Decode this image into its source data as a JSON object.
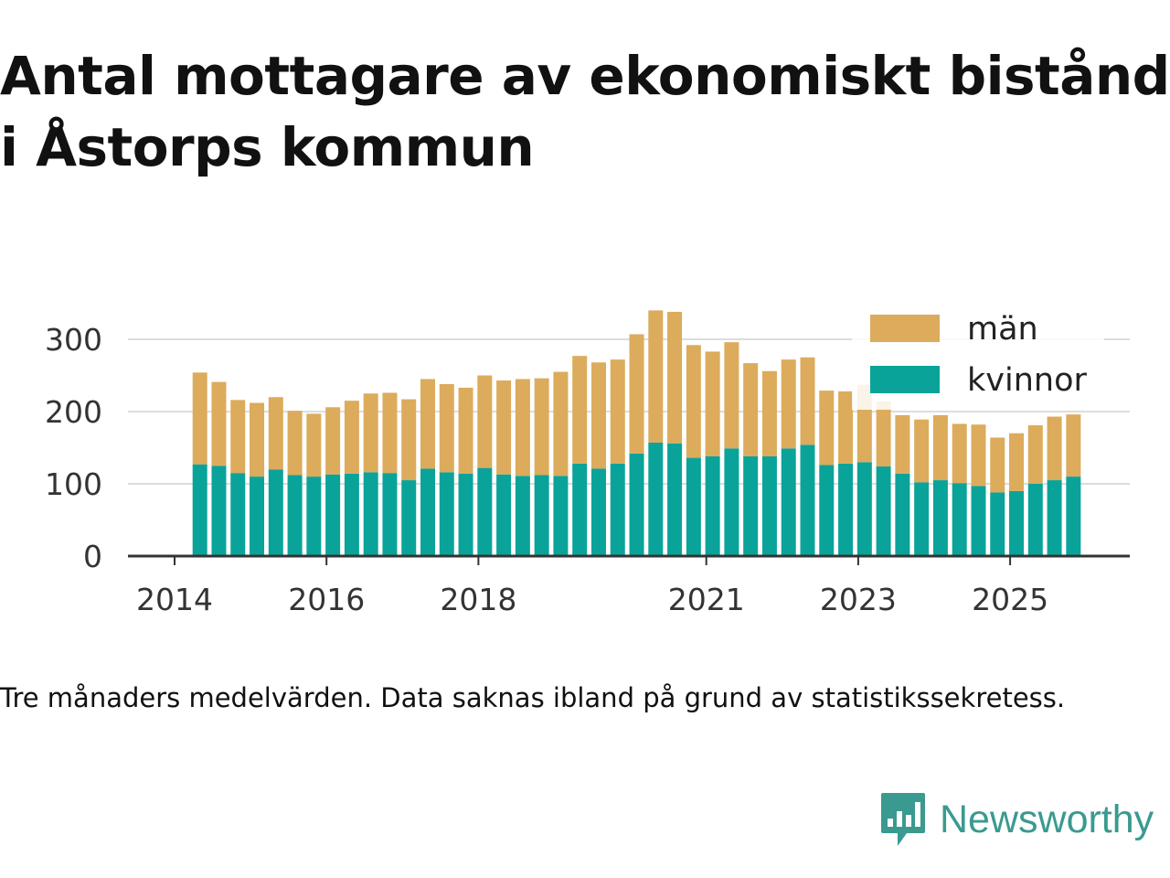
{
  "title_line1": "Antal mottagare av ekonomiskt bistånd",
  "title_line2": "i Åstorps kommun",
  "caption": "Tre månaders medelvärden. Data saknas ibland på grund av statistikssekretess.",
  "brand": {
    "name": "Newsworthy",
    "icon": "newsworthy-logo-icon",
    "color": "#3a9a90"
  },
  "chart_data": {
    "type": "bar",
    "stacked": true,
    "x_axis_ticks": [
      "2014",
      "2016",
      "2018",
      "2021",
      "2023",
      "2025"
    ],
    "y_axis_ticks": [
      "0",
      "100",
      "200",
      "300"
    ],
    "ylim": [
      0,
      350
    ],
    "grid": true,
    "legend_position": "top-right",
    "series": [
      {
        "name": "kvinnor",
        "color": "#0aa39a",
        "points": [
          {
            "x": "2014-05",
            "y": 127
          },
          {
            "x": "2014-08",
            "y": 125
          },
          {
            "x": "2014-11",
            "y": 115
          },
          {
            "x": "2015-02",
            "y": 110
          },
          {
            "x": "2015-05",
            "y": 120
          },
          {
            "x": "2015-08",
            "y": 112
          },
          {
            "x": "2015-11",
            "y": 110
          },
          {
            "x": "2016-02",
            "y": 113
          },
          {
            "x": "2016-05",
            "y": 114
          },
          {
            "x": "2016-08",
            "y": 116
          },
          {
            "x": "2016-11",
            "y": 115
          },
          {
            "x": "2017-02",
            "y": 105
          },
          {
            "x": "2017-05",
            "y": 121
          },
          {
            "x": "2017-08",
            "y": 116
          },
          {
            "x": "2017-11",
            "y": 114
          },
          {
            "x": "2018-02",
            "y": 122
          },
          {
            "x": "2018-05",
            "y": 113
          },
          {
            "x": "2018-08",
            "y": 111
          },
          {
            "x": "2018-11",
            "y": 112
          },
          {
            "x": "2019-02",
            "y": 111
          },
          {
            "x": "2019-05",
            "y": 128
          },
          {
            "x": "2019-08",
            "y": 121
          },
          {
            "x": "2019-11",
            "y": 128
          },
          {
            "x": "2020-02",
            "y": 142
          },
          {
            "x": "2020-05",
            "y": 157
          },
          {
            "x": "2020-08",
            "y": 156
          },
          {
            "x": "2020-11",
            "y": 136
          },
          {
            "x": "2021-02",
            "y": 138
          },
          {
            "x": "2021-05",
            "y": 149
          },
          {
            "x": "2021-08",
            "y": 138
          },
          {
            "x": "2021-11",
            "y": 138
          },
          {
            "x": "2022-02",
            "y": 149
          },
          {
            "x": "2022-05",
            "y": 154
          },
          {
            "x": "2022-08",
            "y": 126
          },
          {
            "x": "2022-11",
            "y": 128
          },
          {
            "x": "2023-02",
            "y": 130
          },
          {
            "x": "2023-05",
            "y": 124
          },
          {
            "x": "2023-08",
            "y": 114
          },
          {
            "x": "2023-11",
            "y": 102
          },
          {
            "x": "2024-02",
            "y": 105
          },
          {
            "x": "2024-05",
            "y": 101
          },
          {
            "x": "2024-08",
            "y": 97
          },
          {
            "x": "2024-11",
            "y": 88
          },
          {
            "x": "2025-02",
            "y": 90
          },
          {
            "x": "2025-05",
            "y": 100
          },
          {
            "x": "2025-08",
            "y": 105
          },
          {
            "x": "2025-11",
            "y": 110
          }
        ]
      },
      {
        "name": "män",
        "color": "#dcab5c",
        "points": [
          {
            "x": "2014-05",
            "y": 127
          },
          {
            "x": "2014-08",
            "y": 116
          },
          {
            "x": "2014-11",
            "y": 101
          },
          {
            "x": "2015-02",
            "y": 102
          },
          {
            "x": "2015-05",
            "y": 100
          },
          {
            "x": "2015-08",
            "y": 89
          },
          {
            "x": "2015-11",
            "y": 87
          },
          {
            "x": "2016-02",
            "y": 93
          },
          {
            "x": "2016-05",
            "y": 101
          },
          {
            "x": "2016-08",
            "y": 109
          },
          {
            "x": "2016-11",
            "y": 111
          },
          {
            "x": "2017-02",
            "y": 112
          },
          {
            "x": "2017-05",
            "y": 124
          },
          {
            "x": "2017-08",
            "y": 122
          },
          {
            "x": "2017-11",
            "y": 119
          },
          {
            "x": "2018-02",
            "y": 128
          },
          {
            "x": "2018-05",
            "y": 130
          },
          {
            "x": "2018-08",
            "y": 134
          },
          {
            "x": "2018-11",
            "y": 134
          },
          {
            "x": "2019-02",
            "y": 144
          },
          {
            "x": "2019-05",
            "y": 149
          },
          {
            "x": "2019-08",
            "y": 147
          },
          {
            "x": "2019-11",
            "y": 144
          },
          {
            "x": "2020-02",
            "y": 165
          },
          {
            "x": "2020-05",
            "y": 183
          },
          {
            "x": "2020-08",
            "y": 182
          },
          {
            "x": "2020-11",
            "y": 156
          },
          {
            "x": "2021-02",
            "y": 145
          },
          {
            "x": "2021-05",
            "y": 147
          },
          {
            "x": "2021-08",
            "y": 129
          },
          {
            "x": "2021-11",
            "y": 118
          },
          {
            "x": "2022-02",
            "y": 123
          },
          {
            "x": "2022-05",
            "y": 121
          },
          {
            "x": "2022-08",
            "y": 103
          },
          {
            "x": "2022-11",
            "y": 100
          },
          {
            "x": "2023-02",
            "y": 107
          },
          {
            "x": "2023-05",
            "y": 90
          },
          {
            "x": "2023-08",
            "y": 81
          },
          {
            "x": "2023-11",
            "y": 87
          },
          {
            "x": "2024-02",
            "y": 90
          },
          {
            "x": "2024-05",
            "y": 82
          },
          {
            "x": "2024-08",
            "y": 85
          },
          {
            "x": "2024-11",
            "y": 76
          },
          {
            "x": "2025-02",
            "y": 80
          },
          {
            "x": "2025-05",
            "y": 81
          },
          {
            "x": "2025-08",
            "y": 88
          },
          {
            "x": "2025-11",
            "y": 86
          }
        ]
      }
    ]
  }
}
